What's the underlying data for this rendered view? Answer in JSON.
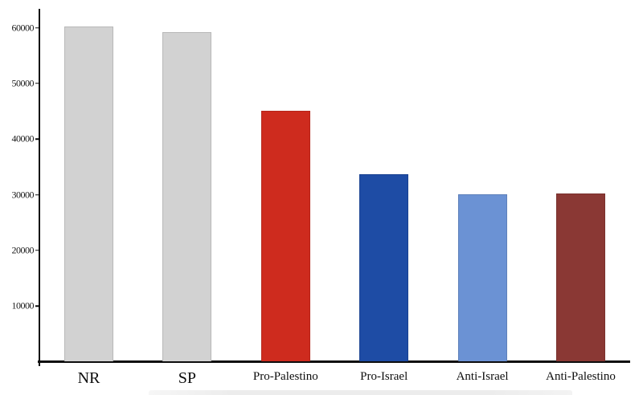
{
  "chart_data": {
    "type": "bar",
    "title": "",
    "xlabel": "",
    "ylabel": "",
    "grid": false,
    "legend": false,
    "categories": [
      "NR",
      "SP",
      "Pro-Palestino",
      "Pro-Israel",
      "Anti-Israel",
      "Anti-Palestino"
    ],
    "values": [
      60200,
      59100,
      45000,
      33600,
      30000,
      30100
    ],
    "bar_colors": [
      "#d2d2d2",
      "#d2d2d2",
      "#ce2b1e",
      "#1e4ca5",
      "#6b92d4",
      "#8a3834"
    ],
    "label_sizes": [
      "large",
      "large",
      "small",
      "small",
      "small",
      "small"
    ],
    "y_ticks": [
      "10000",
      "20000",
      "30000",
      "40000",
      "50000",
      "60000"
    ],
    "ylim": [
      0,
      63000
    ]
  },
  "colors": {
    "axis": "#0d0d0d",
    "background": "#ffffff",
    "bottom_artifact": "#ececec"
  }
}
